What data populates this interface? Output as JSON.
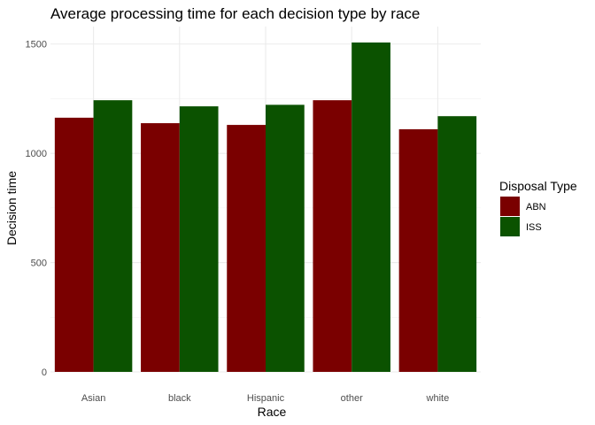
{
  "chart_data": {
    "type": "bar",
    "title": "Average processing time for each decision type by race",
    "xlabel": "Race",
    "ylabel": "Decision time",
    "categories": [
      "Asian",
      "black",
      "Hispanic",
      "other",
      "white"
    ],
    "series": [
      {
        "name": "ABN",
        "color": "#7a0000",
        "values": [
          1163,
          1138,
          1130,
          1243,
          1110
        ]
      },
      {
        "name": "ISS",
        "color": "#0b5200",
        "values": [
          1243,
          1215,
          1222,
          1507,
          1170
        ]
      }
    ],
    "ylim": [
      0,
      1580
    ],
    "yticks": [
      0,
      500,
      1000,
      1500
    ],
    "ytick_labels": [
      "0",
      "500",
      "1000",
      "1500"
    ],
    "grid": true,
    "legend": {
      "title": "Disposal Type",
      "position": "right"
    }
  }
}
